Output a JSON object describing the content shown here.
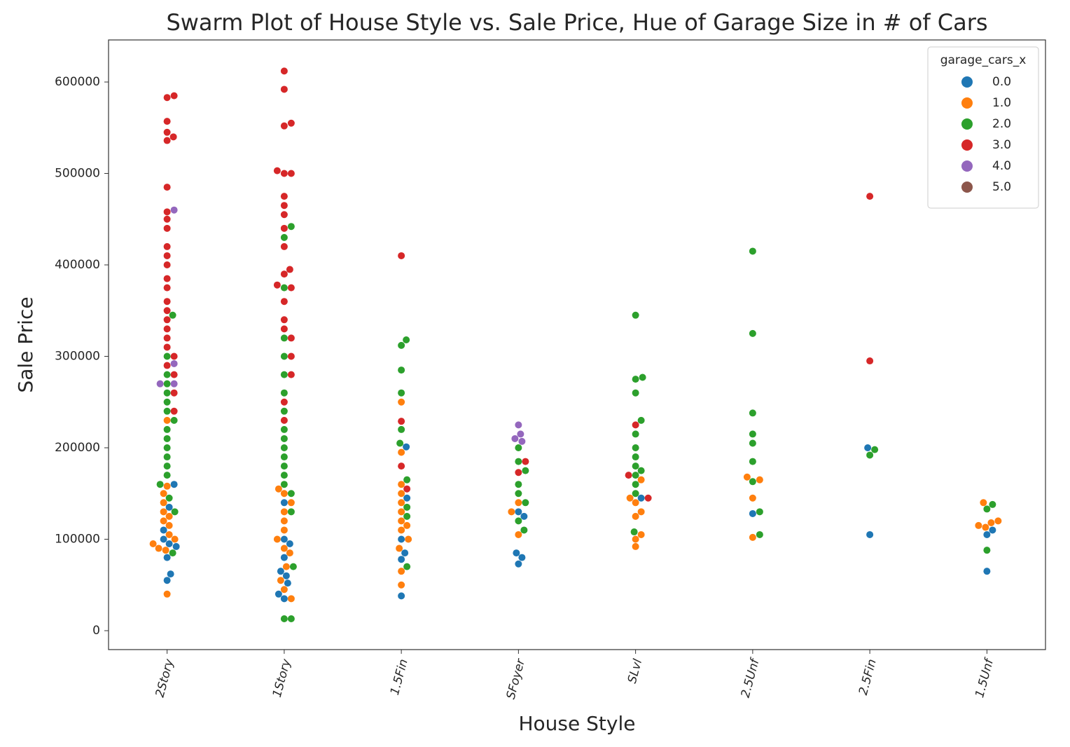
{
  "chart_data": {
    "type": "swarm",
    "title": "Swarm Plot of House Style vs. Sale Price, Hue of Garage Size in # of Cars",
    "x_label": "House Style",
    "y_label": "Sale Price",
    "categories": [
      "2Story",
      "1Story",
      "1.5Fin",
      "SFoyer",
      "SLvl",
      "2.5Unf",
      "2.5Fin",
      "1.5Unf"
    ],
    "ylim": [
      -20700,
      646000
    ],
    "yticks": [
      0,
      100000,
      200000,
      300000,
      400000,
      500000,
      600000
    ],
    "legend_title": "garage_cars_x",
    "legend_position": "upper right",
    "series": [
      {
        "name": "0.0",
        "color": "#1f77b4",
        "x": [
          "2Story",
          "2Story",
          "2Story",
          "2Story",
          "2Story",
          "2Story",
          "2Story",
          "2Story",
          "2Story",
          "1Story",
          "1Story",
          "1Story",
          "1Story",
          "1Story",
          "1Story",
          "1Story",
          "1Story",
          "1Story",
          "1.5Fin",
          "1.5Fin",
          "1.5Fin",
          "1.5Fin",
          "1.5Fin",
          "1.5Fin",
          "SFoyer",
          "SFoyer",
          "SFoyer",
          "SFoyer",
          "SFoyer",
          "SLvl",
          "2.5Unf",
          "2.5Fin",
          "2.5Fin",
          "1.5Unf",
          "1.5Unf",
          "1.5Unf"
        ],
        "values": [
          92000,
          62000,
          55000,
          80000,
          95000,
          110000,
          135000,
          160000,
          100000,
          35000,
          40000,
          52000,
          65000,
          80000,
          95000,
          140000,
          60000,
          100000,
          38000,
          78000,
          85000,
          100000,
          145000,
          201000,
          73000,
          85000,
          80000,
          125000,
          130000,
          145000,
          128000,
          105000,
          200000,
          65000,
          105000,
          110000
        ]
      },
      {
        "name": "1.0",
        "color": "#ff7f0e",
        "x": [
          "2Story",
          "2Story",
          "2Story",
          "2Story",
          "2Story",
          "2Story",
          "2Story",
          "2Story",
          "2Story",
          "2Story",
          "2Story",
          "2Story",
          "2Story",
          "2Story",
          "1Story",
          "1Story",
          "1Story",
          "1Story",
          "1Story",
          "1Story",
          "1Story",
          "1Story",
          "1Story",
          "1Story",
          "1Story",
          "1Story",
          "1Story",
          "1.5Fin",
          "1.5Fin",
          "1.5Fin",
          "1.5Fin",
          "1.5Fin",
          "1.5Fin",
          "1.5Fin",
          "1.5Fin",
          "1.5Fin",
          "1.5Fin",
          "1.5Fin",
          "1.5Fin",
          "1.5Fin",
          "SFoyer",
          "SFoyer",
          "SFoyer",
          "SLvl",
          "SLvl",
          "SLvl",
          "SLvl",
          "SLvl",
          "SLvl",
          "SLvl",
          "SLvl",
          "2.5Unf",
          "2.5Unf",
          "2.5Unf",
          "2.5Unf",
          "1.5Unf",
          "1.5Unf",
          "1.5Unf",
          "1.5Unf",
          "1.5Unf"
        ],
        "values": [
          40000,
          88000,
          90000,
          95000,
          100000,
          105000,
          115000,
          120000,
          125000,
          130000,
          140000,
          150000,
          158000,
          230000,
          35000,
          45000,
          55000,
          70000,
          85000,
          90000,
          100000,
          110000,
          120000,
          130000,
          140000,
          150000,
          155000,
          50000,
          65000,
          90000,
          100000,
          110000,
          115000,
          120000,
          130000,
          140000,
          150000,
          160000,
          250000,
          195000,
          105000,
          130000,
          140000,
          92000,
          100000,
          105000,
          125000,
          130000,
          140000,
          145000,
          165000,
          102000,
          145000,
          165000,
          168000,
          113000,
          120000,
          115000,
          140000,
          118000
        ]
      },
      {
        "name": "2.0",
        "color": "#2ca02c",
        "x": [
          "2Story",
          "2Story",
          "2Story",
          "2Story",
          "2Story",
          "2Story",
          "2Story",
          "2Story",
          "2Story",
          "2Story",
          "2Story",
          "2Story",
          "2Story",
          "2Story",
          "2Story",
          "2Story",
          "2Story",
          "2Story",
          "1Story",
          "1Story",
          "1Story",
          "1Story",
          "1Story",
          "1Story",
          "1Story",
          "1Story",
          "1Story",
          "1Story",
          "1Story",
          "1Story",
          "1Story",
          "1Story",
          "1Story",
          "1Story",
          "1Story",
          "1Story",
          "1Story",
          "1Story",
          "1.5Fin",
          "1.5Fin",
          "1.5Fin",
          "1.5Fin",
          "1.5Fin",
          "1.5Fin",
          "1.5Fin",
          "1.5Fin",
          "1.5Fin",
          "1.5Fin",
          "SFoyer",
          "SFoyer",
          "SFoyer",
          "SFoyer",
          "SFoyer",
          "SFoyer",
          "SFoyer",
          "SFoyer",
          "SLvl",
          "SLvl",
          "SLvl",
          "SLvl",
          "SLvl",
          "SLvl",
          "SLvl",
          "SLvl",
          "SLvl",
          "SLvl",
          "SLvl",
          "SLvl",
          "SLvl",
          "SLvl",
          "2.5Unf",
          "2.5Unf",
          "2.5Unf",
          "2.5Unf",
          "2.5Unf",
          "2.5Unf",
          "2.5Unf",
          "2.5Unf",
          "2.5Unf",
          "2.5Fin",
          "2.5Fin",
          "1.5Unf",
          "1.5Unf",
          "1.5Unf"
        ],
        "values": [
          85000,
          130000,
          145000,
          160000,
          170000,
          180000,
          190000,
          200000,
          210000,
          220000,
          230000,
          240000,
          250000,
          260000,
          270000,
          280000,
          300000,
          345000,
          13000,
          13000,
          70000,
          130000,
          150000,
          160000,
          170000,
          180000,
          190000,
          200000,
          210000,
          220000,
          240000,
          260000,
          280000,
          300000,
          320000,
          375000,
          442000,
          430000,
          70000,
          125000,
          135000,
          165000,
          205000,
          220000,
          285000,
          318000,
          312000,
          260000,
          110000,
          140000,
          150000,
          160000,
          175000,
          185000,
          200000,
          120000,
          108000,
          150000,
          160000,
          170000,
          175000,
          180000,
          190000,
          200000,
          215000,
          230000,
          260000,
          275000,
          277000,
          345000,
          105000,
          130000,
          163000,
          185000,
          205000,
          215000,
          238000,
          325000,
          415000,
          192000,
          198000,
          88000,
          133000,
          138000
        ]
      },
      {
        "name": "3.0",
        "color": "#d62728",
        "x": [
          "2Story",
          "2Story",
          "2Story",
          "2Story",
          "2Story",
          "2Story",
          "2Story",
          "2Story",
          "2Story",
          "2Story",
          "2Story",
          "2Story",
          "2Story",
          "2Story",
          "2Story",
          "2Story",
          "2Story",
          "2Story",
          "2Story",
          "2Story",
          "2Story",
          "2Story",
          "2Story",
          "2Story",
          "2Story",
          "2Story",
          "1Story",
          "1Story",
          "1Story",
          "1Story",
          "1Story",
          "1Story",
          "1Story",
          "1Story",
          "1Story",
          "1Story",
          "1Story",
          "1Story",
          "1Story",
          "1Story",
          "1Story",
          "1Story",
          "1Story",
          "1Story",
          "1Story",
          "1Story",
          "1Story",
          "1Story",
          "1Story",
          "1Story",
          "1.5Fin",
          "1.5Fin",
          "1.5Fin",
          "1.5Fin",
          "SFoyer",
          "SFoyer",
          "SLvl",
          "SLvl",
          "SLvl",
          "2.5Fin",
          "2.5Fin"
        ],
        "values": [
          585000,
          583000,
          557000,
          545000,
          540000,
          536000,
          485000,
          458000,
          450000,
          440000,
          420000,
          410000,
          400000,
          385000,
          375000,
          360000,
          350000,
          340000,
          330000,
          320000,
          310000,
          300000,
          290000,
          280000,
          260000,
          240000,
          612000,
          592000,
          555000,
          552000,
          503000,
          500000,
          500000,
          475000,
          465000,
          455000,
          440000,
          420000,
          395000,
          390000,
          378000,
          375000,
          360000,
          340000,
          330000,
          320000,
          300000,
          280000,
          250000,
          230000,
          410000,
          229000,
          180000,
          155000,
          173000,
          185000,
          225000,
          170000,
          145000,
          475000,
          295000
        ]
      },
      {
        "name": "4.0",
        "color": "#9467bd",
        "x": [
          "2Story",
          "2Story",
          "2Story",
          "2Story",
          "SFoyer",
          "SFoyer",
          "SFoyer",
          "SFoyer"
        ],
        "values": [
          460000,
          292000,
          270000,
          270000,
          225000,
          215000,
          210000,
          207000
        ]
      },
      {
        "name": "5.0",
        "color": "#8c564b",
        "x": [],
        "values": []
      }
    ]
  }
}
